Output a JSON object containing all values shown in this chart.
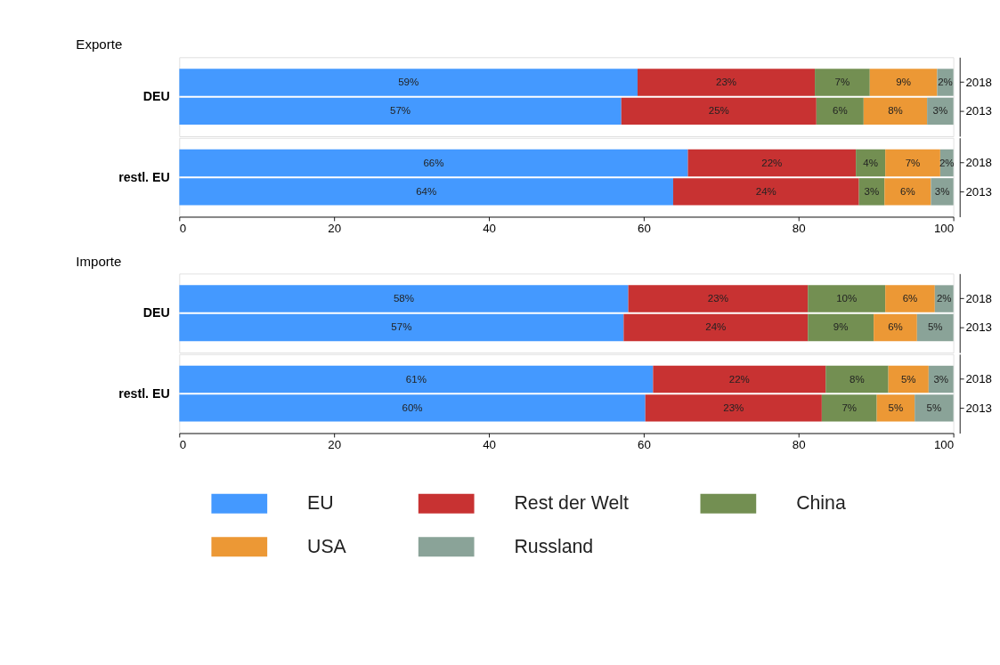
{
  "chart_data": [
    {
      "type": "bar",
      "orientation": "horizontal",
      "stacked": true,
      "title": "Exporte",
      "ylabel": "DEU",
      "categories": [
        "2018",
        "2013"
      ],
      "xlim": [
        0,
        100
      ],
      "tick_labels": "y",
      "legend": "bottom",
      "series": [
        {
          "name": "EU",
          "color": "#4499ff",
          "values": [
            59.2,
            57.1
          ],
          "value_labels": [
            "59%",
            "57%"
          ]
        },
        {
          "name": "Rest der Welt",
          "color": "#c83232",
          "values": [
            22.9,
            25.2
          ],
          "value_labels": [
            "23%",
            "25%"
          ]
        },
        {
          "name": "China",
          "color": "#738f52",
          "values": [
            7.1,
            6.1
          ],
          "value_labels": [
            "7%",
            "6%"
          ]
        },
        {
          "name": "USA",
          "color": "#ec9835",
          "values": [
            8.7,
            8.2
          ],
          "value_labels": [
            "9%",
            "8%"
          ]
        },
        {
          "name": "Russland",
          "color": "#8aa398",
          "values": [
            2.1,
            3.4
          ],
          "value_labels": [
            "2%",
            "3%"
          ]
        }
      ]
    },
    {
      "type": "bar",
      "orientation": "horizontal",
      "stacked": true,
      "ylabel": "restl. EU",
      "categories": [
        "2018",
        "2013"
      ],
      "xlim": [
        0,
        100
      ],
      "xticks": [
        0,
        20,
        40,
        60,
        80,
        100
      ],
      "legend": "bottom",
      "series": [
        {
          "name": "EU",
          "color": "#4499ff",
          "values": [
            65.7,
            63.8
          ],
          "value_labels": [
            "66%",
            "64%"
          ]
        },
        {
          "name": "Rest der Welt",
          "color": "#c83232",
          "values": [
            21.7,
            24.0
          ],
          "value_labels": [
            "22%",
            "24%"
          ]
        },
        {
          "name": "China",
          "color": "#738f52",
          "values": [
            3.8,
            3.3
          ],
          "value_labels": [
            "4%",
            "3%"
          ]
        },
        {
          "name": "USA",
          "color": "#ec9835",
          "values": [
            7.1,
            6.0
          ],
          "value_labels": [
            "7%",
            "6%"
          ]
        },
        {
          "name": "Russland",
          "color": "#8aa398",
          "values": [
            1.7,
            2.9
          ],
          "value_labels": [
            "2%",
            "3%"
          ]
        }
      ]
    },
    {
      "type": "bar",
      "orientation": "horizontal",
      "stacked": true,
      "title": "Importe",
      "ylabel": "DEU",
      "categories": [
        "2018",
        "2013"
      ],
      "xlim": [
        0,
        100
      ],
      "tick_labels": "y",
      "legend": "bottom",
      "series": [
        {
          "name": "EU",
          "color": "#4499ff",
          "values": [
            58.0,
            57.4
          ],
          "value_labels": [
            "58%",
            "57%"
          ]
        },
        {
          "name": "Rest der Welt",
          "color": "#c83232",
          "values": [
            23.2,
            23.8
          ],
          "value_labels": [
            "23%",
            "24%"
          ]
        },
        {
          "name": "China",
          "color": "#738f52",
          "values": [
            10.0,
            8.5
          ],
          "value_labels": [
            "10%",
            "9%"
          ]
        },
        {
          "name": "USA",
          "color": "#ec9835",
          "values": [
            6.4,
            5.6
          ],
          "value_labels": [
            "6%",
            "6%"
          ]
        },
        {
          "name": "Russland",
          "color": "#8aa398",
          "values": [
            2.4,
            4.7
          ],
          "value_labels": [
            "2%",
            "5%"
          ]
        }
      ]
    },
    {
      "type": "bar",
      "orientation": "horizontal",
      "stacked": true,
      "ylabel": "restl. EU",
      "categories": [
        "2018",
        "2013"
      ],
      "xlim": [
        0,
        100
      ],
      "xticks": [
        0,
        20,
        40,
        60,
        80,
        100
      ],
      "legend": "bottom",
      "series": [
        {
          "name": "EU",
          "color": "#4499ff",
          "values": [
            61.2,
            60.2
          ],
          "value_labels": [
            "61%",
            "60%"
          ]
        },
        {
          "name": "Rest der Welt",
          "color": "#c83232",
          "values": [
            22.3,
            22.8
          ],
          "value_labels": [
            "22%",
            "23%"
          ]
        },
        {
          "name": "China",
          "color": "#738f52",
          "values": [
            8.1,
            7.1
          ],
          "value_labels": [
            "8%",
            "7%"
          ]
        },
        {
          "name": "USA",
          "color": "#ec9835",
          "values": [
            5.2,
            4.9
          ],
          "value_labels": [
            "5%",
            "5%"
          ]
        },
        {
          "name": "Russland",
          "color": "#8aa398",
          "values": [
            3.2,
            5.0
          ],
          "value_labels": [
            "3%",
            "5%"
          ]
        }
      ]
    }
  ]
}
